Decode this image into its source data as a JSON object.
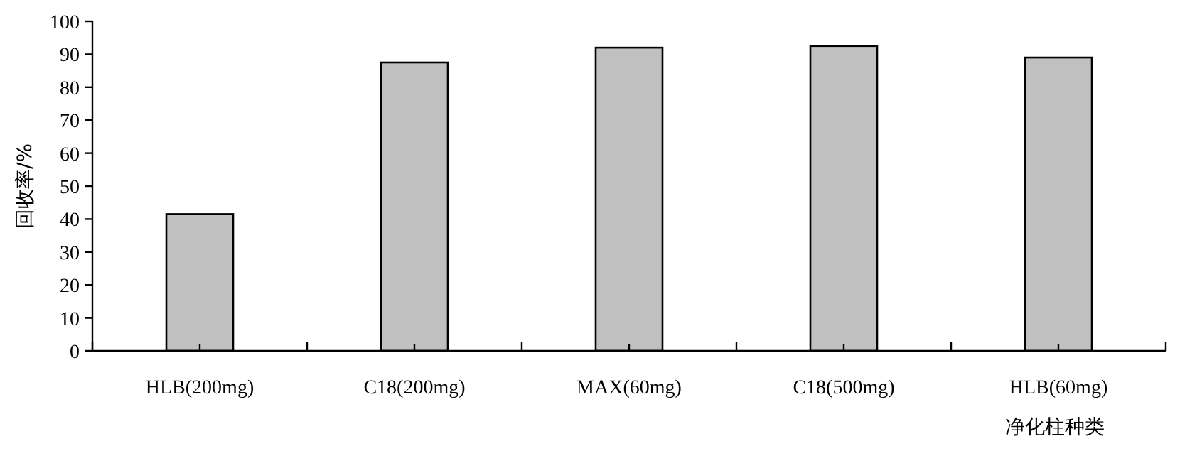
{
  "chart_data": {
    "type": "bar",
    "xlabel": "净化柱种类",
    "ylabel": "回收率/%",
    "categories": [
      "HLB(200mg)",
      "C18(200mg)",
      "MAX(60mg)",
      "C18(500mg)",
      "HLB(60mg)"
    ],
    "values": [
      41.5,
      87.5,
      92,
      92.5,
      89
    ],
    "color": "#c0c0c0",
    "ylim": [
      0,
      100
    ],
    "yticks": [
      0,
      10,
      20,
      30,
      40,
      50,
      60,
      70,
      80,
      90,
      100
    ],
    "grid": false
  }
}
